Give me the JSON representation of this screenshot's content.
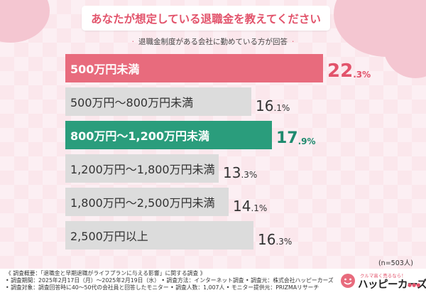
{
  "title": "あなたが想定している退職金を教えてください",
  "subtitle": "退職金制度がある会社に勤めている方が回答",
  "colors": {
    "highlight_red": "#e86b7d",
    "highlight_green": "#2a9d7c",
    "bar_gray": "#dcdcdc",
    "accent_text_red": "#e2536b",
    "accent_text_green": "#1e8a6e",
    "background_pink": "#fbe7ec"
  },
  "chart_data": {
    "type": "bar",
    "orientation": "horizontal",
    "categories": [
      "500万円未満",
      "500万円～800万円未満",
      "800万円～1,200万円未満",
      "1,200万円～1,800万円未満",
      "1,800万円～2,500万円未満",
      "2,500万円以上"
    ],
    "values": [
      22.3,
      16.1,
      17.9,
      13.3,
      14.1,
      16.3
    ],
    "value_labels": [
      {
        "int": "22",
        "dec": ".3%"
      },
      {
        "int": "16",
        "dec": ".1%"
      },
      {
        "int": "17",
        "dec": ".9%"
      },
      {
        "int": "13",
        "dec": ".3%"
      },
      {
        "int": "14",
        "dec": ".1%"
      },
      {
        "int": "16",
        "dec": ".3%"
      }
    ],
    "highlights": [
      "red",
      "none",
      "green",
      "none",
      "none",
      "none"
    ],
    "unit": "%",
    "xlim": [
      0,
      22.3
    ],
    "title": "あなたが想定している退職金を教えてください",
    "subtitle": "退職金制度がある会社に勤めている方が回答"
  },
  "n_label": "(n=503人)",
  "footer": {
    "lines": [
      "《 調査概要：「退職金と早期退職がライフプランに与える影響」に関する調査 》",
      "• 調査期間：2025年2月17日（月）～2025年2月19日（水） • 調査方法：インターネット調査 • 調査元：株式会社ハッピーカーズ",
      "• 調査対象：調査回答時に40～50代の会社員と回答したモニター • 調査人数：1,007人 • モニター提供元：PRIZMAリサーチ"
    ]
  },
  "logo": {
    "tagline": "クルマ高く売るなら！",
    "name": "ハッピーカーズ",
    "dots": "●●●"
  }
}
